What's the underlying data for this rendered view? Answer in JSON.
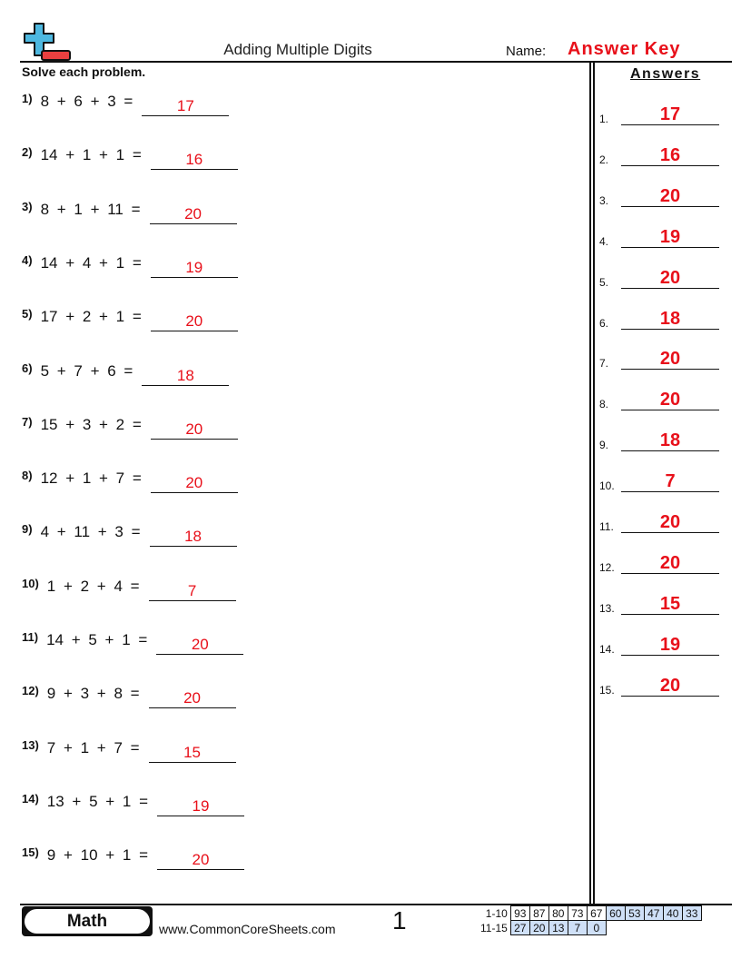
{
  "header": {
    "title": "Adding Multiple Digits",
    "name_label": "Name:",
    "answer_key": "Answer Key",
    "logo": "plus-minus-logo"
  },
  "instructions": "Solve each problem.",
  "problems": [
    {
      "num": "1)",
      "expr": "8 + 6 + 3 =",
      "answer": "17"
    },
    {
      "num": "2)",
      "expr": "14 + 1 + 1 =",
      "answer": "16"
    },
    {
      "num": "3)",
      "expr": "8 + 1 + 11 =",
      "answer": "20"
    },
    {
      "num": "4)",
      "expr": "14 + 4 + 1 =",
      "answer": "19"
    },
    {
      "num": "5)",
      "expr": "17 + 2 + 1 =",
      "answer": "20"
    },
    {
      "num": "6)",
      "expr": "5 + 7 + 6 =",
      "answer": "18"
    },
    {
      "num": "7)",
      "expr": "15 + 3 + 2 =",
      "answer": "20"
    },
    {
      "num": "8)",
      "expr": "12 + 1 + 7 =",
      "answer": "20"
    },
    {
      "num": "9)",
      "expr": "4 + 11 + 3 =",
      "answer": "18"
    },
    {
      "num": "10)",
      "expr": "1 + 2 + 4 =",
      "answer": "7"
    },
    {
      "num": "11)",
      "expr": "14 + 5 + 1 =",
      "answer": "20"
    },
    {
      "num": "12)",
      "expr": "9 + 3 + 8 =",
      "answer": "20"
    },
    {
      "num": "13)",
      "expr": "7 + 1 + 7 =",
      "answer": "15"
    },
    {
      "num": "14)",
      "expr": "13 + 5 + 1 =",
      "answer": "19"
    },
    {
      "num": "15)",
      "expr": "9 + 10 + 1 =",
      "answer": "20"
    }
  ],
  "answers": {
    "heading": "Answers",
    "items": [
      {
        "num": "1.",
        "value": "17"
      },
      {
        "num": "2.",
        "value": "16"
      },
      {
        "num": "3.",
        "value": "20"
      },
      {
        "num": "4.",
        "value": "19"
      },
      {
        "num": "5.",
        "value": "20"
      },
      {
        "num": "6.",
        "value": "18"
      },
      {
        "num": "7.",
        "value": "20"
      },
      {
        "num": "8.",
        "value": "20"
      },
      {
        "num": "9.",
        "value": "18"
      },
      {
        "num": "10.",
        "value": "7"
      },
      {
        "num": "11.",
        "value": "20"
      },
      {
        "num": "12.",
        "value": "20"
      },
      {
        "num": "13.",
        "value": "15"
      },
      {
        "num": "14.",
        "value": "19"
      },
      {
        "num": "15.",
        "value": "20"
      }
    ]
  },
  "footer": {
    "subject": "Math",
    "site": "www.CommonCoreSheets.com",
    "page": "1",
    "score_rows": [
      {
        "label": "1-10",
        "scores": [
          "93",
          "87",
          "80",
          "73",
          "67",
          "60",
          "53",
          "47",
          "40",
          "33"
        ]
      },
      {
        "label": "11-15",
        "scores": [
          "27",
          "20",
          "13",
          "7",
          "0"
        ]
      }
    ]
  },
  "colors": {
    "answer": "#e8101a",
    "logo_blue": "#4db8e0",
    "logo_red": "#e84040",
    "score_blue": "#cfe0f7"
  }
}
